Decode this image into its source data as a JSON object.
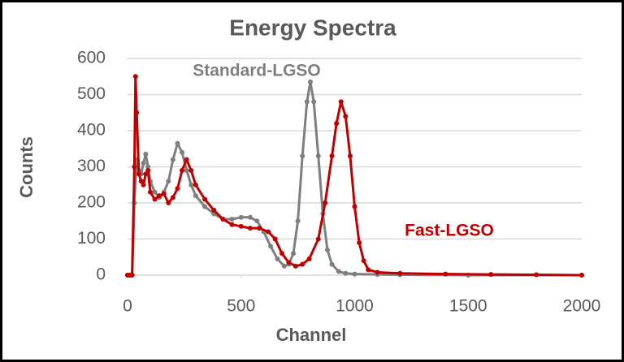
{
  "chart_data": {
    "type": "line",
    "title": "Energy Spectra",
    "x_label": "Channel",
    "y_label": "Counts",
    "xlim": [
      0,
      2000
    ],
    "xticks": [
      0,
      500,
      1000,
      1500,
      2000
    ],
    "ylim": [
      0,
      600
    ],
    "yticks": [
      0,
      100,
      200,
      300,
      400,
      500,
      600
    ],
    "grid": true,
    "series": [
      {
        "name": "Standard-LGSO",
        "color": "#7f7f7f",
        "x": [
          0,
          10,
          20,
          30,
          40,
          50,
          60,
          70,
          80,
          90,
          100,
          120,
          140,
          160,
          180,
          200,
          220,
          240,
          260,
          280,
          300,
          340,
          380,
          420,
          460,
          500,
          540,
          570,
          600,
          630,
          660,
          690,
          710,
          730,
          750,
          770,
          790,
          805,
          820,
          840,
          860,
          880,
          900,
          930,
          960,
          1000,
          1100,
          1200,
          1500,
          2000
        ],
        "values": [
          0,
          0,
          0,
          200,
          320,
          290,
          280,
          310,
          335,
          300,
          260,
          230,
          215,
          230,
          260,
          320,
          365,
          340,
          290,
          250,
          220,
          190,
          170,
          155,
          155,
          160,
          160,
          150,
          120,
          80,
          45,
          25,
          30,
          60,
          150,
          330,
          480,
          535,
          480,
          330,
          170,
          70,
          30,
          10,
          5,
          3,
          2,
          1,
          0,
          0
        ]
      },
      {
        "name": "Fast-LGSO",
        "color": "#c00000",
        "x": [
          0,
          10,
          20,
          30,
          35,
          40,
          50,
          60,
          70,
          80,
          90,
          100,
          120,
          140,
          160,
          180,
          200,
          220,
          240,
          260,
          280,
          300,
          340,
          380,
          420,
          460,
          500,
          540,
          580,
          620,
          650,
          680,
          710,
          740,
          770,
          800,
          840,
          870,
          900,
          920,
          940,
          960,
          980,
          1000,
          1020,
          1040,
          1060,
          1100,
          1200,
          1400,
          1600,
          1800,
          2000
        ],
        "values": [
          0,
          0,
          0,
          300,
          550,
          450,
          280,
          260,
          250,
          280,
          290,
          230,
          210,
          220,
          225,
          200,
          215,
          240,
          290,
          320,
          290,
          250,
          210,
          180,
          155,
          140,
          135,
          130,
          130,
          120,
          100,
          60,
          35,
          25,
          30,
          45,
          100,
          200,
          330,
          420,
          480,
          440,
          330,
          190,
          90,
          40,
          15,
          8,
          5,
          3,
          2,
          1,
          0
        ]
      }
    ]
  }
}
